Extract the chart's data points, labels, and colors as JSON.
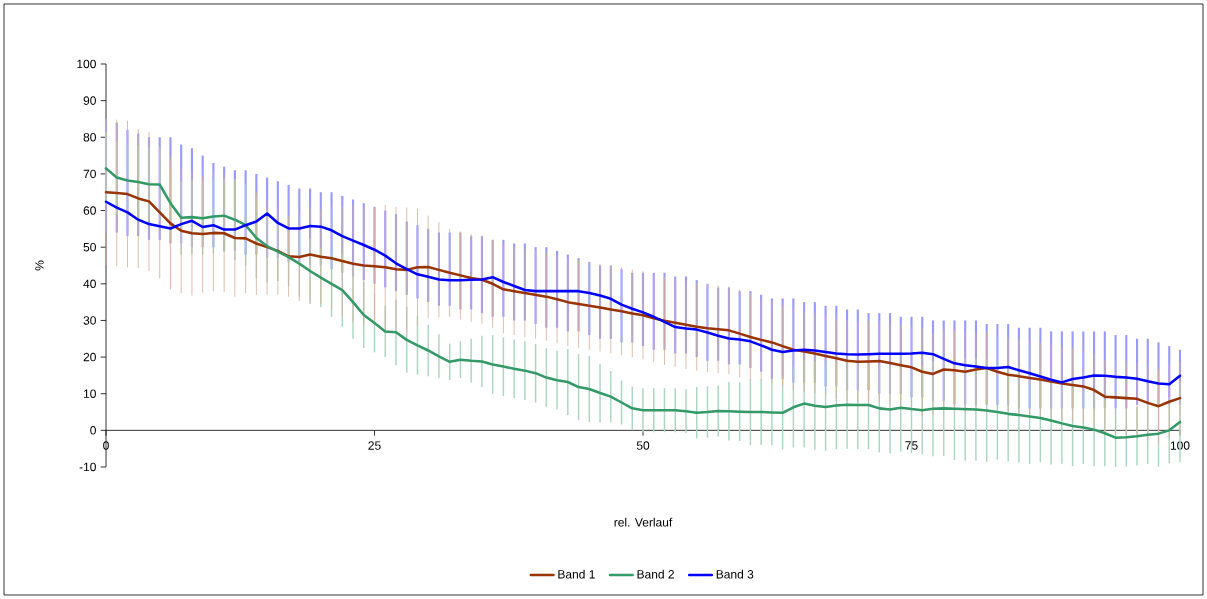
{
  "chart_data": {
    "type": "line",
    "xlabel": "rel. Verlauf",
    "ylabel": "%",
    "x": [
      0,
      1,
      2,
      3,
      4,
      5,
      6,
      7,
      8,
      9,
      10,
      11,
      12,
      13,
      14,
      15,
      16,
      17,
      18,
      19,
      20,
      21,
      22,
      23,
      24,
      25,
      26,
      27,
      28,
      29,
      30,
      31,
      32,
      33,
      34,
      35,
      36,
      37,
      38,
      39,
      40,
      41,
      42,
      43,
      44,
      45,
      46,
      47,
      48,
      49,
      50,
      51,
      52,
      53,
      54,
      55,
      56,
      57,
      58,
      59,
      60,
      61,
      62,
      63,
      64,
      65,
      66,
      67,
      68,
      69,
      70,
      71,
      72,
      73,
      74,
      75,
      76,
      77,
      78,
      79,
      80,
      81,
      82,
      83,
      84,
      85,
      86,
      87,
      88,
      89,
      90,
      91,
      92,
      93,
      94,
      95,
      96,
      97,
      98,
      99,
      100
    ],
    "series": [
      {
        "name": "Band 1",
        "color": "#993300",
        "values": [
          65,
          64.8,
          64.5,
          63.3,
          62.5,
          59.5,
          56.5,
          54.5,
          53.8,
          53.6,
          53.9,
          53.8,
          52.5,
          52.4,
          51,
          50,
          49,
          47.5,
          47.3,
          48,
          47.4,
          47,
          46.2,
          45.5,
          45,
          44.8,
          44.5,
          44,
          43.8,
          44.5,
          44.6,
          43.8,
          43,
          42.3,
          41.6,
          41.1,
          40,
          38.5,
          38,
          37.5,
          37,
          36.5,
          35.8,
          35,
          34.5,
          34,
          33.5,
          33,
          32.5,
          31.9,
          31.4,
          30.6,
          29.9,
          29.4,
          28.8,
          28.3,
          27.9,
          27.6,
          27.3,
          26.4,
          25.5,
          24.7,
          24,
          23,
          22,
          21.5,
          21,
          20.3,
          19.7,
          19,
          18.7,
          18.8,
          18.9,
          18.4,
          17.8,
          17.2,
          16,
          15.4,
          16.6,
          16.4,
          16,
          16.6,
          17,
          16,
          15.2,
          14.8,
          14.3,
          13.9,
          13.3,
          12.8,
          12.4,
          12,
          11,
          9.2,
          9,
          8.8,
          8.6,
          7.5,
          6.6,
          7.8,
          8.8
        ],
        "errors": [
          20,
          20,
          20,
          19,
          19,
          18,
          18,
          17,
          17,
          16,
          16,
          16,
          16,
          15,
          14,
          13,
          12,
          11,
          12,
          13,
          13,
          14,
          15,
          16,
          16,
          16,
          17,
          17,
          17,
          16,
          14,
          13,
          12,
          12,
          12,
          12,
          12,
          12,
          12,
          12,
          12,
          12,
          12,
          12,
          12,
          12,
          12,
          12,
          12,
          12,
          12,
          12,
          12,
          12,
          12,
          12,
          12,
          12,
          12,
          12,
          12,
          11,
          11,
          11,
          11,
          11,
          11,
          11,
          11,
          11,
          11,
          11,
          11,
          11,
          11,
          11,
          12,
          11,
          11,
          11,
          11,
          10,
          10,
          10,
          10,
          10,
          10,
          10,
          10,
          10,
          10,
          10,
          10,
          10,
          10,
          10,
          10,
          10,
          10,
          10,
          10
        ]
      },
      {
        "name": "Band 2",
        "color": "#339966",
        "values": [
          71.5,
          69,
          68.2,
          67.8,
          67.2,
          67.1,
          62,
          58,
          58.2,
          57.9,
          58.4,
          58.6,
          57.5,
          56,
          52.5,
          50.3,
          48.8,
          47.3,
          45.5,
          43.5,
          41.7,
          40,
          38.3,
          35,
          31.5,
          29.3,
          27,
          26.8,
          24.7,
          23.2,
          21.8,
          20.2,
          18.7,
          19.3,
          19,
          18.8,
          18,
          17.4,
          16.8,
          16.3,
          15.6,
          14.4,
          13.7,
          13.2,
          11.8,
          11.3,
          10.2,
          9.2,
          7.6,
          6,
          5.5,
          5.5,
          5.5,
          5.5,
          5.2,
          4.8,
          5,
          5.3,
          5.2,
          5.1,
          5,
          5,
          4.9,
          4.8,
          6.3,
          7.3,
          6.7,
          6.4,
          6.8,
          7,
          6.9,
          6.9,
          6,
          5.7,
          6.2,
          5.8,
          5.5,
          5.9,
          6,
          5.9,
          5.8,
          5.7,
          5.4,
          5,
          4.5,
          4.2,
          3.8,
          3.4,
          2.7,
          1.9,
          1.2,
          0.8,
          0.2,
          -0.8,
          -2,
          -1.9,
          -1.6,
          -1.2,
          -0.9,
          0,
          2.3
        ],
        "errors": [
          10,
          10,
          10,
          10,
          10,
          10,
          10,
          10,
          10,
          10,
          10,
          10,
          11,
          11,
          11,
          10,
          8,
          8,
          9,
          9,
          8,
          9,
          10,
          10,
          9,
          8,
          7,
          9,
          9,
          8,
          7,
          6,
          5,
          5,
          6,
          7,
          8,
          8,
          8,
          8,
          8,
          8,
          8,
          9,
          9,
          9,
          8,
          7,
          6,
          6,
          6,
          6,
          6,
          6,
          6,
          7,
          7,
          7,
          8,
          8,
          9,
          9,
          9,
          10,
          11,
          12,
          12,
          12,
          12,
          12,
          12,
          12,
          12,
          12,
          12,
          12,
          12,
          13,
          13,
          14,
          14,
          14,
          14,
          13,
          13,
          13,
          13,
          12,
          12,
          11,
          11,
          10,
          10,
          9,
          8,
          8,
          8,
          8,
          9,
          9,
          11
        ]
      },
      {
        "name": "Band 3",
        "color": "#0000ff",
        "values": [
          62.4,
          60.8,
          59.5,
          57.5,
          56.3,
          55.7,
          55.1,
          56.3,
          57.2,
          55.5,
          56,
          54.8,
          54.8,
          56,
          57,
          59.2,
          56.6,
          55.1,
          55.1,
          55.8,
          55.6,
          54.6,
          53,
          51.8,
          50.6,
          49.3,
          47.7,
          45.6,
          44,
          42.6,
          41.9,
          41.2,
          41,
          41,
          41.1,
          41.2,
          41.8,
          40.5,
          39.4,
          38.3,
          38,
          38,
          38,
          38,
          38,
          37.5,
          36.8,
          35.9,
          34.3,
          33.2,
          32.2,
          31,
          29.6,
          28.2,
          27.8,
          27.5,
          26.7,
          25.8,
          25.1,
          24.8,
          24.3,
          23.2,
          22,
          21.4,
          21.8,
          22,
          21.8,
          21.4,
          21,
          20.8,
          20.7,
          20.8,
          20.9,
          20.9,
          20.9,
          21,
          21.2,
          20.8,
          19.5,
          18.3,
          17.8,
          17.4,
          17,
          17,
          17.3,
          16.4,
          15.6,
          14.7,
          13.8,
          13.1,
          14,
          14.4,
          15,
          14.9,
          14.6,
          14.4,
          14.1,
          13.4,
          12.8,
          12.6,
          14.9
        ],
        "errors": [
          [
            54,
            85
          ],
          [
            54,
            84
          ],
          [
            53,
            82
          ],
          [
            53,
            81
          ],
          [
            52,
            80
          ],
          [
            52,
            80
          ],
          [
            51,
            80
          ],
          [
            51,
            78
          ],
          [
            50,
            77
          ],
          [
            50,
            75
          ],
          [
            50,
            73
          ],
          [
            49,
            72
          ],
          [
            49,
            71
          ],
          [
            48,
            71
          ],
          [
            48,
            70
          ],
          [
            47,
            69
          ],
          [
            47,
            68
          ],
          [
            46,
            67
          ],
          [
            46,
            66
          ],
          [
            45,
            66
          ],
          [
            45,
            65
          ],
          [
            44,
            65
          ],
          [
            43,
            64
          ],
          [
            42,
            63
          ],
          [
            41,
            62
          ],
          [
            40,
            61
          ],
          [
            39,
            60
          ],
          [
            38,
            59
          ],
          [
            37,
            57
          ],
          [
            36,
            56
          ],
          [
            35,
            55
          ],
          [
            34,
            54
          ],
          [
            34,
            54
          ],
          [
            33,
            54
          ],
          [
            33,
            53
          ],
          [
            32,
            53
          ],
          [
            31,
            52
          ],
          [
            31,
            52
          ],
          [
            30,
            51
          ],
          [
            30,
            51
          ],
          [
            29,
            50
          ],
          [
            28,
            50
          ],
          [
            28,
            49
          ],
          [
            27,
            48
          ],
          [
            27,
            47
          ],
          [
            26,
            46
          ],
          [
            25,
            45
          ],
          [
            25,
            45
          ],
          [
            24,
            44
          ],
          [
            24,
            43
          ],
          [
            23,
            43
          ],
          [
            22,
            43
          ],
          [
            22,
            43
          ],
          [
            21,
            42
          ],
          [
            21,
            42
          ],
          [
            20,
            41
          ],
          [
            19,
            40
          ],
          [
            19,
            39
          ],
          [
            18,
            39
          ],
          [
            18,
            38
          ],
          [
            17,
            38
          ],
          [
            16,
            37
          ],
          [
            14,
            36
          ],
          [
            14,
            36
          ],
          [
            13,
            36
          ],
          [
            13,
            35
          ],
          [
            13,
            35
          ],
          [
            12,
            34
          ],
          [
            12,
            34
          ],
          [
            11,
            33
          ],
          [
            11,
            33
          ],
          [
            11,
            32
          ],
          [
            10,
            32
          ],
          [
            10,
            32
          ],
          [
            10,
            31
          ],
          [
            9,
            31
          ],
          [
            9,
            31
          ],
          [
            8,
            30
          ],
          [
            8,
            30
          ],
          [
            7,
            30
          ],
          [
            7,
            30
          ],
          [
            7,
            30
          ],
          [
            7,
            29
          ],
          [
            7,
            29
          ],
          [
            7,
            29
          ],
          [
            6,
            28
          ],
          [
            6,
            28
          ],
          [
            6,
            28
          ],
          [
            6,
            27
          ],
          [
            6,
            27
          ],
          [
            6,
            27
          ],
          [
            6,
            27
          ],
          [
            6,
            27
          ],
          [
            6,
            27
          ],
          [
            6,
            26
          ],
          [
            6,
            26
          ],
          [
            7,
            25
          ],
          [
            7,
            25
          ],
          [
            7,
            24
          ],
          [
            7,
            23
          ],
          [
            7,
            22
          ]
        ]
      }
    ],
    "xlim": [
      0,
      100
    ],
    "ylim": [
      -10,
      100
    ],
    "xticks": [
      0,
      25,
      50,
      75,
      100
    ],
    "yticks": [
      -10,
      0,
      10,
      20,
      30,
      40,
      50,
      60,
      70,
      80,
      90,
      100
    ],
    "legend": "bottom",
    "marker": "none"
  }
}
